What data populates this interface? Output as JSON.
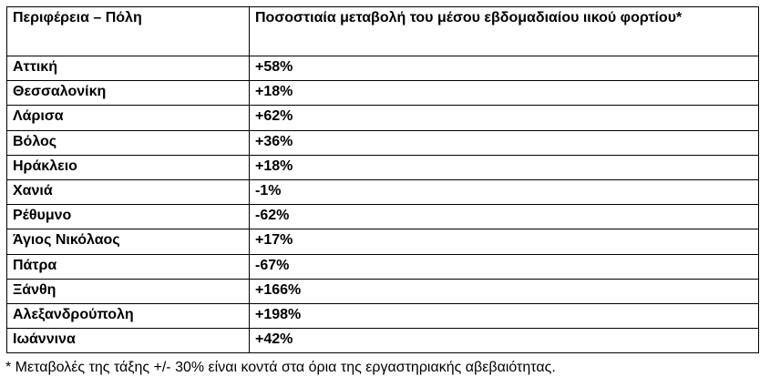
{
  "table": {
    "headers": [
      "Περιφέρεια – Πόλη",
      "Ποσοστιαία μεταβολή του μέσου εβδομαδιαίου ιικού φορτίου*"
    ],
    "rows": [
      [
        "Αττική",
        "+58%"
      ],
      [
        "Θεσσαλονίκη",
        "+18%"
      ],
      [
        "Λάρισα",
        "+62%"
      ],
      [
        "Βόλος",
        "+36%"
      ],
      [
        "Ηράκλειο",
        "+18%"
      ],
      [
        "Χανιά",
        "-1%"
      ],
      [
        "Ρέθυμνο",
        "-62%"
      ],
      [
        "Άγιος Νικόλαος",
        "+17%"
      ],
      [
        "Πάτρα",
        "-67%"
      ],
      [
        "Ξάνθη",
        "+166%"
      ],
      [
        "Αλεξανδρούπολη",
        "+198%"
      ],
      [
        "Ιωάννινα",
        "+42%"
      ]
    ]
  },
  "footnote": "* Μεταβολές της τάξης +/- 30% είναι κοντά στα όρια της εργαστηριακής αβεβαιότητας."
}
